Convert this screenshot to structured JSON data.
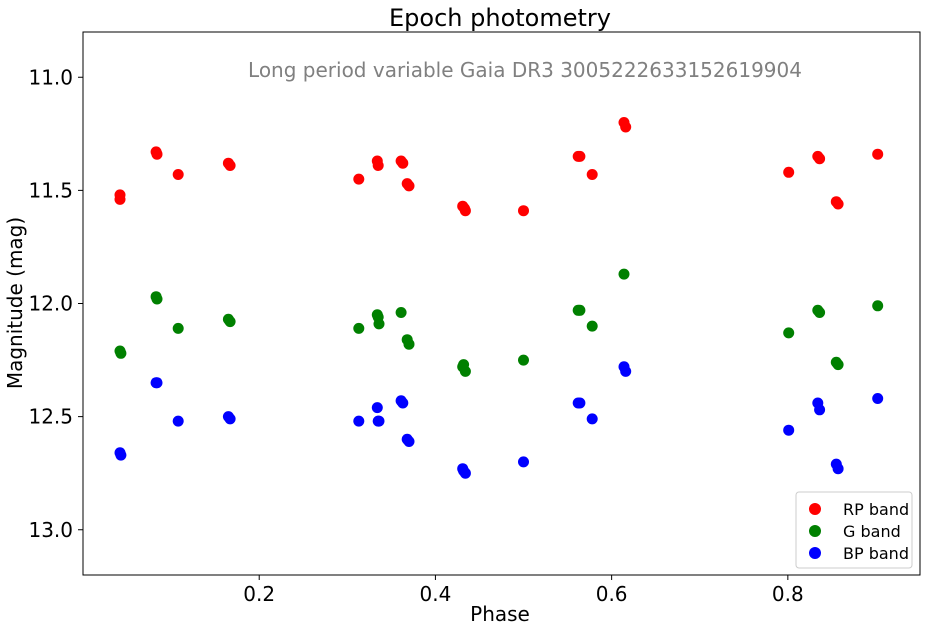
{
  "chart_data": {
    "type": "scatter",
    "title": "Epoch photometry",
    "annotation": "Long period variable Gaia DR3 3005222633152619904",
    "xlabel": "Phase",
    "ylabel": "Magnitude (mag)",
    "xlim": [
      0.0,
      0.95
    ],
    "ylim": [
      13.2,
      10.8
    ],
    "y_inverted": true,
    "x_ticks": [
      "0.2",
      "0.4",
      "0.6",
      "0.8"
    ],
    "y_ticks": [
      "11.0",
      "11.5",
      "12.0",
      "12.5",
      "13.0"
    ],
    "grid": false,
    "legend_position": "bottom-right",
    "series": [
      {
        "name": "RP band",
        "color": "#ff0000",
        "points": [
          [
            0.042,
            11.52
          ],
          [
            0.042,
            11.54
          ],
          [
            0.083,
            11.33
          ],
          [
            0.084,
            11.34
          ],
          [
            0.108,
            11.43
          ],
          [
            0.165,
            11.38
          ],
          [
            0.167,
            11.39
          ],
          [
            0.313,
            11.45
          ],
          [
            0.334,
            11.37
          ],
          [
            0.335,
            11.39
          ],
          [
            0.361,
            11.37
          ],
          [
            0.363,
            11.38
          ],
          [
            0.368,
            11.47
          ],
          [
            0.37,
            11.48
          ],
          [
            0.431,
            11.57
          ],
          [
            0.433,
            11.58
          ],
          [
            0.434,
            11.59
          ],
          [
            0.5,
            11.59
          ],
          [
            0.562,
            11.35
          ],
          [
            0.564,
            11.35
          ],
          [
            0.578,
            11.43
          ],
          [
            0.614,
            11.2
          ],
          [
            0.616,
            11.22
          ],
          [
            0.801,
            11.42
          ],
          [
            0.834,
            11.35
          ],
          [
            0.836,
            11.36
          ],
          [
            0.855,
            11.55
          ],
          [
            0.857,
            11.56
          ],
          [
            0.902,
            11.34
          ]
        ]
      },
      {
        "name": "G band",
        "color": "#008000",
        "points": [
          [
            0.042,
            12.21
          ],
          [
            0.043,
            12.22
          ],
          [
            0.083,
            11.97
          ],
          [
            0.084,
            11.98
          ],
          [
            0.108,
            12.11
          ],
          [
            0.165,
            12.07
          ],
          [
            0.167,
            12.08
          ],
          [
            0.313,
            12.11
          ],
          [
            0.334,
            12.05
          ],
          [
            0.335,
            12.06
          ],
          [
            0.336,
            12.09
          ],
          [
            0.361,
            12.04
          ],
          [
            0.368,
            12.16
          ],
          [
            0.37,
            12.18
          ],
          [
            0.431,
            12.28
          ],
          [
            0.432,
            12.27
          ],
          [
            0.434,
            12.3
          ],
          [
            0.5,
            12.25
          ],
          [
            0.562,
            12.03
          ],
          [
            0.564,
            12.03
          ],
          [
            0.578,
            12.1
          ],
          [
            0.614,
            11.87
          ],
          [
            0.801,
            12.13
          ],
          [
            0.834,
            12.03
          ],
          [
            0.836,
            12.04
          ],
          [
            0.855,
            12.26
          ],
          [
            0.857,
            12.27
          ],
          [
            0.902,
            12.01
          ]
        ]
      },
      {
        "name": "BP band",
        "color": "#0000ff",
        "points": [
          [
            0.042,
            12.66
          ],
          [
            0.043,
            12.67
          ],
          [
            0.083,
            12.35
          ],
          [
            0.084,
            12.35
          ],
          [
            0.108,
            12.52
          ],
          [
            0.165,
            12.5
          ],
          [
            0.167,
            12.51
          ],
          [
            0.313,
            12.52
          ],
          [
            0.334,
            12.46
          ],
          [
            0.335,
            12.52
          ],
          [
            0.336,
            12.52
          ],
          [
            0.361,
            12.43
          ],
          [
            0.363,
            12.44
          ],
          [
            0.368,
            12.6
          ],
          [
            0.37,
            12.61
          ],
          [
            0.431,
            12.73
          ],
          [
            0.432,
            12.74
          ],
          [
            0.434,
            12.75
          ],
          [
            0.5,
            12.7
          ],
          [
            0.562,
            12.44
          ],
          [
            0.564,
            12.44
          ],
          [
            0.578,
            12.51
          ],
          [
            0.614,
            12.28
          ],
          [
            0.616,
            12.3
          ],
          [
            0.801,
            12.56
          ],
          [
            0.834,
            12.44
          ],
          [
            0.836,
            12.47
          ],
          [
            0.855,
            12.71
          ],
          [
            0.857,
            12.73
          ],
          [
            0.902,
            12.42
          ]
        ]
      }
    ]
  }
}
